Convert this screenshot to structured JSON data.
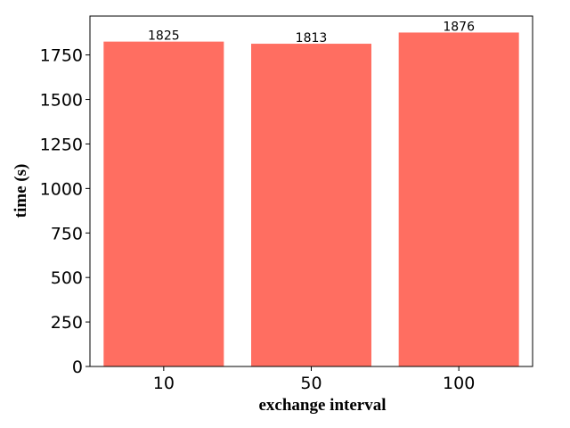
{
  "chart_data": {
    "type": "bar",
    "categories": [
      "10",
      "50",
      "100"
    ],
    "values": [
      1825,
      1813,
      1876
    ],
    "data_labels": [
      "1825",
      "1813",
      "1876"
    ],
    "title": "",
    "xlabel": "exchange interval",
    "ylabel": "time (s)",
    "ylim": [
      0,
      1876
    ],
    "yticks": [
      "0",
      "250",
      "500",
      "750",
      "1000",
      "1250",
      "1500",
      "1750"
    ],
    "grid": false,
    "bar_color": "#ff6e61"
  }
}
